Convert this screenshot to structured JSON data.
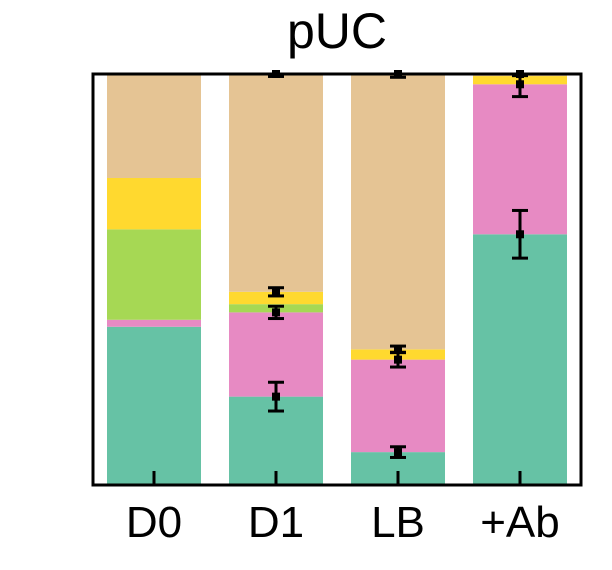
{
  "chart_data": {
    "type": "bar",
    "stacked": true,
    "normalized": true,
    "title": "pUC",
    "xlabel": "",
    "ylabel": "",
    "categories": [
      "D0",
      "D1",
      "LB",
      "+Ab"
    ],
    "ylim": [
      0,
      1
    ],
    "grid": false,
    "series": [
      {
        "color": "#66c2a5",
        "values": [
          0.385,
          0.215,
          0.08,
          0.61
        ],
        "errors": [
          null,
          0.035,
          0.013,
          0.058
        ]
      },
      {
        "color": "#e78ac3",
        "values": [
          0.017,
          0.205,
          0.225,
          0.365
        ],
        "errors": [
          null,
          0.015,
          0.018,
          0.03
        ]
      },
      {
        "color": "#a6d854",
        "values": [
          0.22,
          0.02,
          0.0,
          0.0
        ],
        "errors": [
          null,
          null,
          null,
          null
        ]
      },
      {
        "color": "#ffd92f",
        "values": [
          0.125,
          0.03,
          0.025,
          0.02
        ],
        "errors": [
          null,
          0.01,
          0.008,
          null
        ]
      },
      {
        "color": "#e5c494",
        "values": [
          0.253,
          0.53,
          0.67,
          0.005
        ],
        "errors": [
          null,
          0.006,
          0.008,
          0.004
        ]
      }
    ]
  }
}
